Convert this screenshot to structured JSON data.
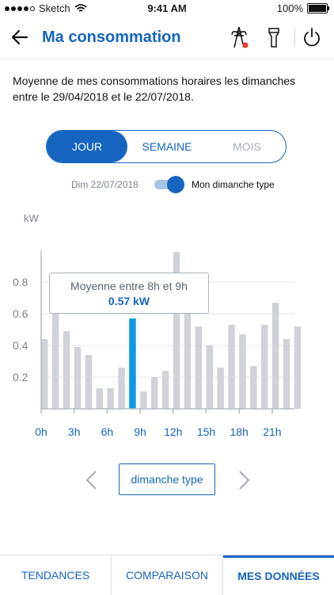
{
  "status": {
    "carrier": "Sketch",
    "time": "9:41 AM",
    "battery": "100%"
  },
  "header": {
    "title": "Ma consommation"
  },
  "description": "Moyenne de mes consommations horaires les dimanches entre le 29/04/2018 et le 22/07/2018.",
  "period_tabs": {
    "day": "JOUR",
    "week": "SEMAINE",
    "month": "MOIS",
    "selected": "JOUR"
  },
  "compare": {
    "date_label": "Dim 22/07/2018",
    "toggle_on": true,
    "toggle_label": "Mon dimanche type"
  },
  "tooltip": {
    "title": "Moyenne entre 8h et 9h",
    "value": "0.57 kW"
  },
  "selector": {
    "label": "dimanche type"
  },
  "bottom_tabs": [
    {
      "label": "TENDANCES",
      "active": false
    },
    {
      "label": "COMPARAISON",
      "active": false
    },
    {
      "label": "MES DONNÉES",
      "active": true
    }
  ],
  "colors": {
    "accent": "#1565c0",
    "bar": "#cfd3d9",
    "highlight": "#0a9be0"
  },
  "chart_data": {
    "type": "bar",
    "title": "",
    "ylabel": "kW",
    "xlabel": "",
    "ylim": [
      0,
      1.0
    ],
    "yticks": [
      "0.2",
      "0.4",
      "0.6",
      "0.8"
    ],
    "xtick_labels": [
      "0h",
      "3h",
      "6h",
      "9h",
      "12h",
      "15h",
      "18h",
      "21h"
    ],
    "categories": [
      "0h",
      "1h",
      "2h",
      "3h",
      "4h",
      "5h",
      "6h",
      "7h",
      "8h",
      "9h",
      "10h",
      "11h",
      "12h",
      "13h",
      "14h",
      "15h",
      "16h",
      "17h",
      "18h",
      "19h",
      "20h",
      "21h",
      "22h",
      "23h"
    ],
    "values": [
      0.44,
      0.6,
      0.49,
      0.39,
      0.34,
      0.13,
      0.13,
      0.26,
      0.57,
      0.11,
      0.2,
      0.24,
      0.99,
      0.6,
      0.52,
      0.4,
      0.26,
      0.53,
      0.47,
      0.27,
      0.53,
      0.67,
      0.44,
      0.52
    ],
    "highlight_index": 8,
    "grid": true
  }
}
